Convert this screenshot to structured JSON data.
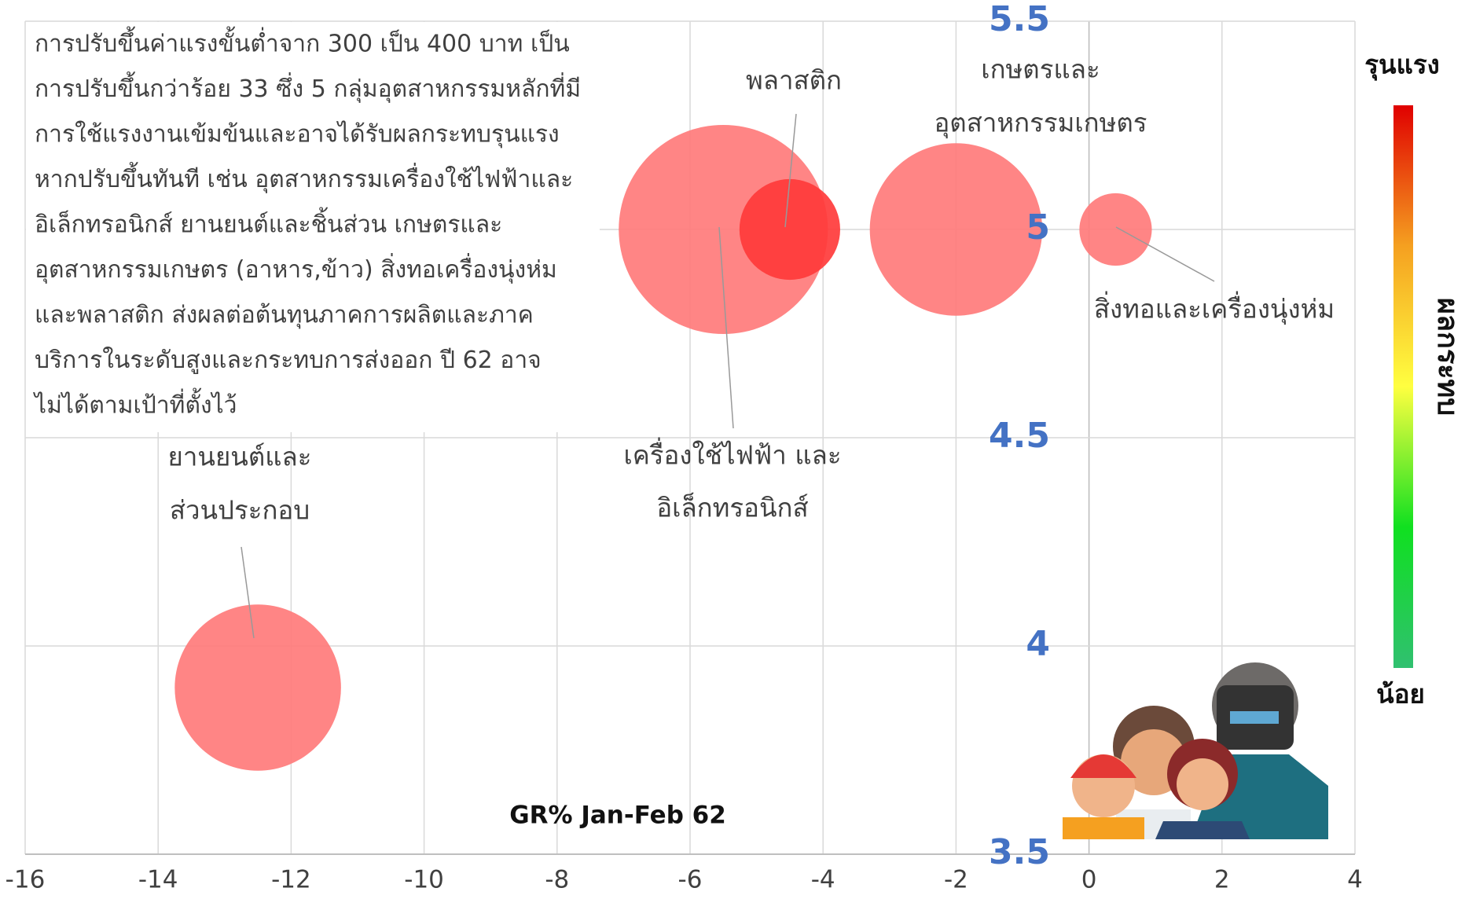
{
  "chart_data": {
    "type": "bubble",
    "x_label": "GR% Jan-Feb 62",
    "xlim": [
      -16,
      4
    ],
    "xticks": [
      -16,
      -14,
      -12,
      -10,
      -8,
      -6,
      -4,
      -2,
      0,
      2,
      4
    ],
    "ylim": [
      3.5,
      5.5
    ],
    "yticks": [
      3.5,
      4,
      4.5,
      5,
      5.5
    ],
    "grid": true,
    "annotation": [
      "การปรับขึ้นค่าแรงขั้นต่ำจาก 300 เป็น 400 บาท เป็น",
      "การปรับขึ้นกว่าร้อย 33 ซึ่ง 5 กลุ่มอุตสาหกรรมหลักที่มี",
      "การใช้แรงงานเข้มข้นและอาจได้รับผลกระทบรุนแรง",
      "หากปรับขึ้นทันที เช่น อุตสาหกรรมเครื่องใช้ไฟฟ้าและ",
      "อิเล็กทรอนิกส์ ยานยนต์และชิ้นส่วน เกษตรและ",
      "อุตสาหกรรมเกษตร (อาหาร,ข้าว) สิ่งทอเครื่องนุ่งห่ม",
      "และพลาสติก ส่งผลต่อต้นทุนภาคการผลิตและภาค",
      "บริการในระดับสูงและกระทบการส่งออก ปี 62 อาจ",
      "ไม่ได้ตามเป้าที่ตั้งไว้"
    ],
    "points": [
      {
        "label": [
          "เครื่องใช้ไฟฟ้า และ",
          "อิเล็กทรอนิกส์"
        ],
        "x": -5.5,
        "y": 5,
        "size": 125,
        "color": "#ff7b7b"
      },
      {
        "label": [
          "พลาสติก"
        ],
        "x": -4.5,
        "y": 5,
        "size": 29,
        "color": "#ff3b3b"
      },
      {
        "label": [
          "เกษตรและ",
          "อุตสาหกรรมเกษตร"
        ],
        "x": -2,
        "y": 5,
        "size": 85,
        "color": "#ff7b7b"
      },
      {
        "label": [
          "สิ่งทอและเครื่องนุ่งห่ม"
        ],
        "x": 0.4,
        "y": 5,
        "size": 15,
        "color": "#ff7b7b"
      },
      {
        "label": [
          "ยานยนต์และ",
          "ส่วนประกอบ"
        ],
        "x": -12.5,
        "y": 3.9,
        "size": 79,
        "color": "#ff7b7b"
      }
    ],
    "colorbar": {
      "label": "ผลกระทบ",
      "high": "รุนแรง",
      "low": "น้อย",
      "colors": [
        "#e00000",
        "#f5a020",
        "#ffff40",
        "#10e020",
        "#30c070"
      ]
    }
  }
}
